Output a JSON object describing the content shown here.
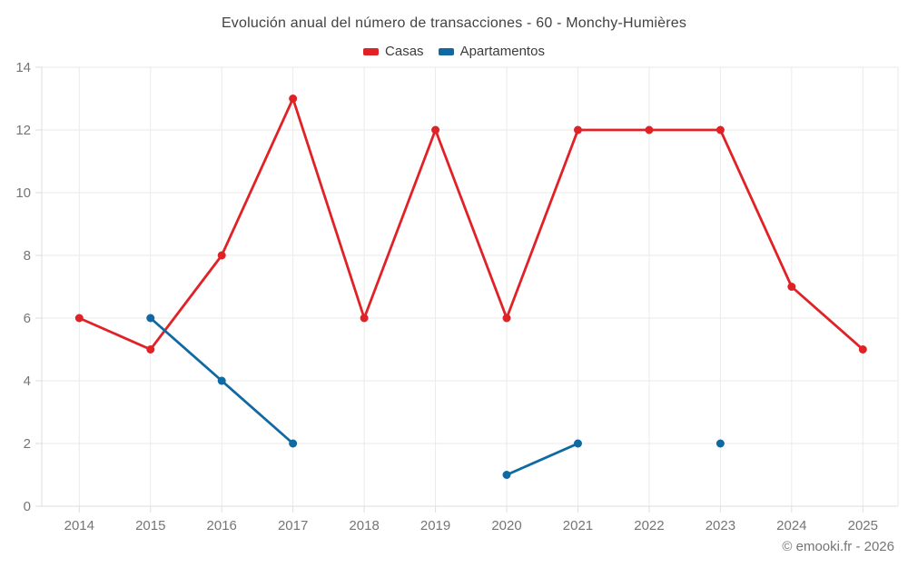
{
  "page": {
    "background": "#ffffff",
    "footer": "© emooki.fr - 2026"
  },
  "chart_data": {
    "type": "line",
    "title": "Evolución anual del número de transacciones - 60 - Monchy-Humières",
    "categories": [
      "2014",
      "2015",
      "2016",
      "2017",
      "2018",
      "2019",
      "2020",
      "2021",
      "2022",
      "2023",
      "2024",
      "2025"
    ],
    "series": [
      {
        "name": "Casas",
        "color": "#e02227",
        "values": [
          6,
          5,
          8,
          13,
          6,
          12,
          6,
          12,
          12,
          12,
          7,
          5
        ]
      },
      {
        "name": "Apartamentos",
        "color": "#0f69a3",
        "values": [
          null,
          6,
          4,
          2,
          null,
          null,
          1,
          2,
          null,
          2,
          null,
          null
        ]
      }
    ],
    "ylim": [
      0,
      14
    ],
    "y_ticks": [
      0,
      2,
      4,
      6,
      8,
      10,
      12,
      14
    ],
    "grid": true,
    "legend_position": "top",
    "grid_color": "#eaeaea",
    "axis_border_color": "#dedede",
    "tick_label_color": "#757575",
    "point_radius": 4.5,
    "line_width": 2.8
  }
}
